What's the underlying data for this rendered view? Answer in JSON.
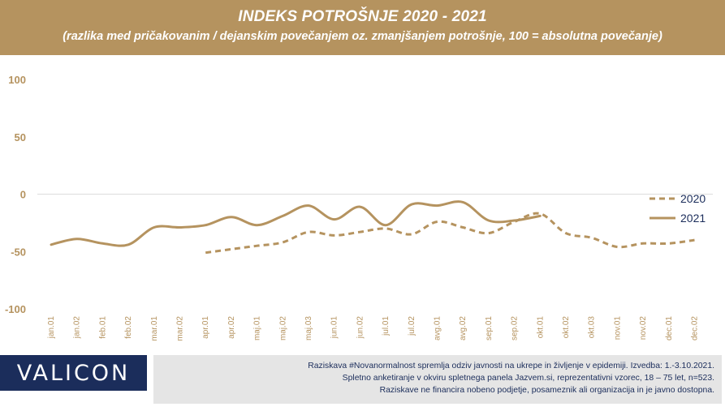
{
  "header": {
    "title": "INDEKS POTROŠNJE 2020 - 2021",
    "subtitle": "(razlika med pričakovanim / dejanskim povečanjem oz. zmanjšanjem potrošnje, 100 = absolutna povečanje)"
  },
  "logo": {
    "text": "VALICON"
  },
  "note": {
    "line1": "Raziskava #Novanormalnost spremlja odziv javnosti na ukrepe in življenje v epidemiji. Izvedba: 1.-3.10.2021.",
    "line2": "Spletno anketiranje v okviru spletnega panela Jazvem.si, reprezentativni vzorec, 18 – 75 let, n=523.",
    "line3": "Raziskave ne financira nobeno podjetje, posameznik ali organizacija in je javno dostopna."
  },
  "colors": {
    "accent": "#b5935f",
    "brand_dark": "#1b2d5b",
    "note_bg": "#e5e5e5"
  },
  "chart_data": {
    "type": "line",
    "categories": [
      "jan.01",
      "jan.02",
      "feb.01",
      "feb.02",
      "mar.01",
      "mar.02",
      "apr.01",
      "apr.02",
      "maj.01",
      "maj.02",
      "maj.03",
      "jun.01",
      "jun.02",
      "jul.01",
      "jul.02",
      "avg.01",
      "avg.02",
      "sep.01",
      "sep.02",
      "okt.01",
      "okt.02",
      "okt.03",
      "nov.01",
      "nov.02",
      "dec.01",
      "dec.02"
    ],
    "yticks": [
      "100",
      "50",
      "0",
      "-50",
      "-100"
    ],
    "ylim": [
      -100,
      100
    ],
    "legend_position": "right",
    "series": [
      {
        "name": "2020",
        "style": "dashed",
        "values": [
          null,
          null,
          null,
          null,
          null,
          null,
          -51,
          -48,
          -45,
          -42,
          -33,
          -36,
          -33,
          -30,
          -35,
          -24,
          -29,
          -34,
          -24,
          -17,
          -34,
          -38,
          -46,
          -43,
          -43,
          -40
        ]
      },
      {
        "name": "2021",
        "style": "solid",
        "values": [
          -44,
          -39,
          -43,
          -44,
          -29,
          -29,
          -27,
          -20,
          -27,
          -19,
          -10,
          -22,
          -11,
          -27,
          -9,
          -10,
          -7,
          -23,
          -23,
          -19,
          null,
          null,
          null,
          null,
          null,
          null
        ]
      }
    ]
  }
}
